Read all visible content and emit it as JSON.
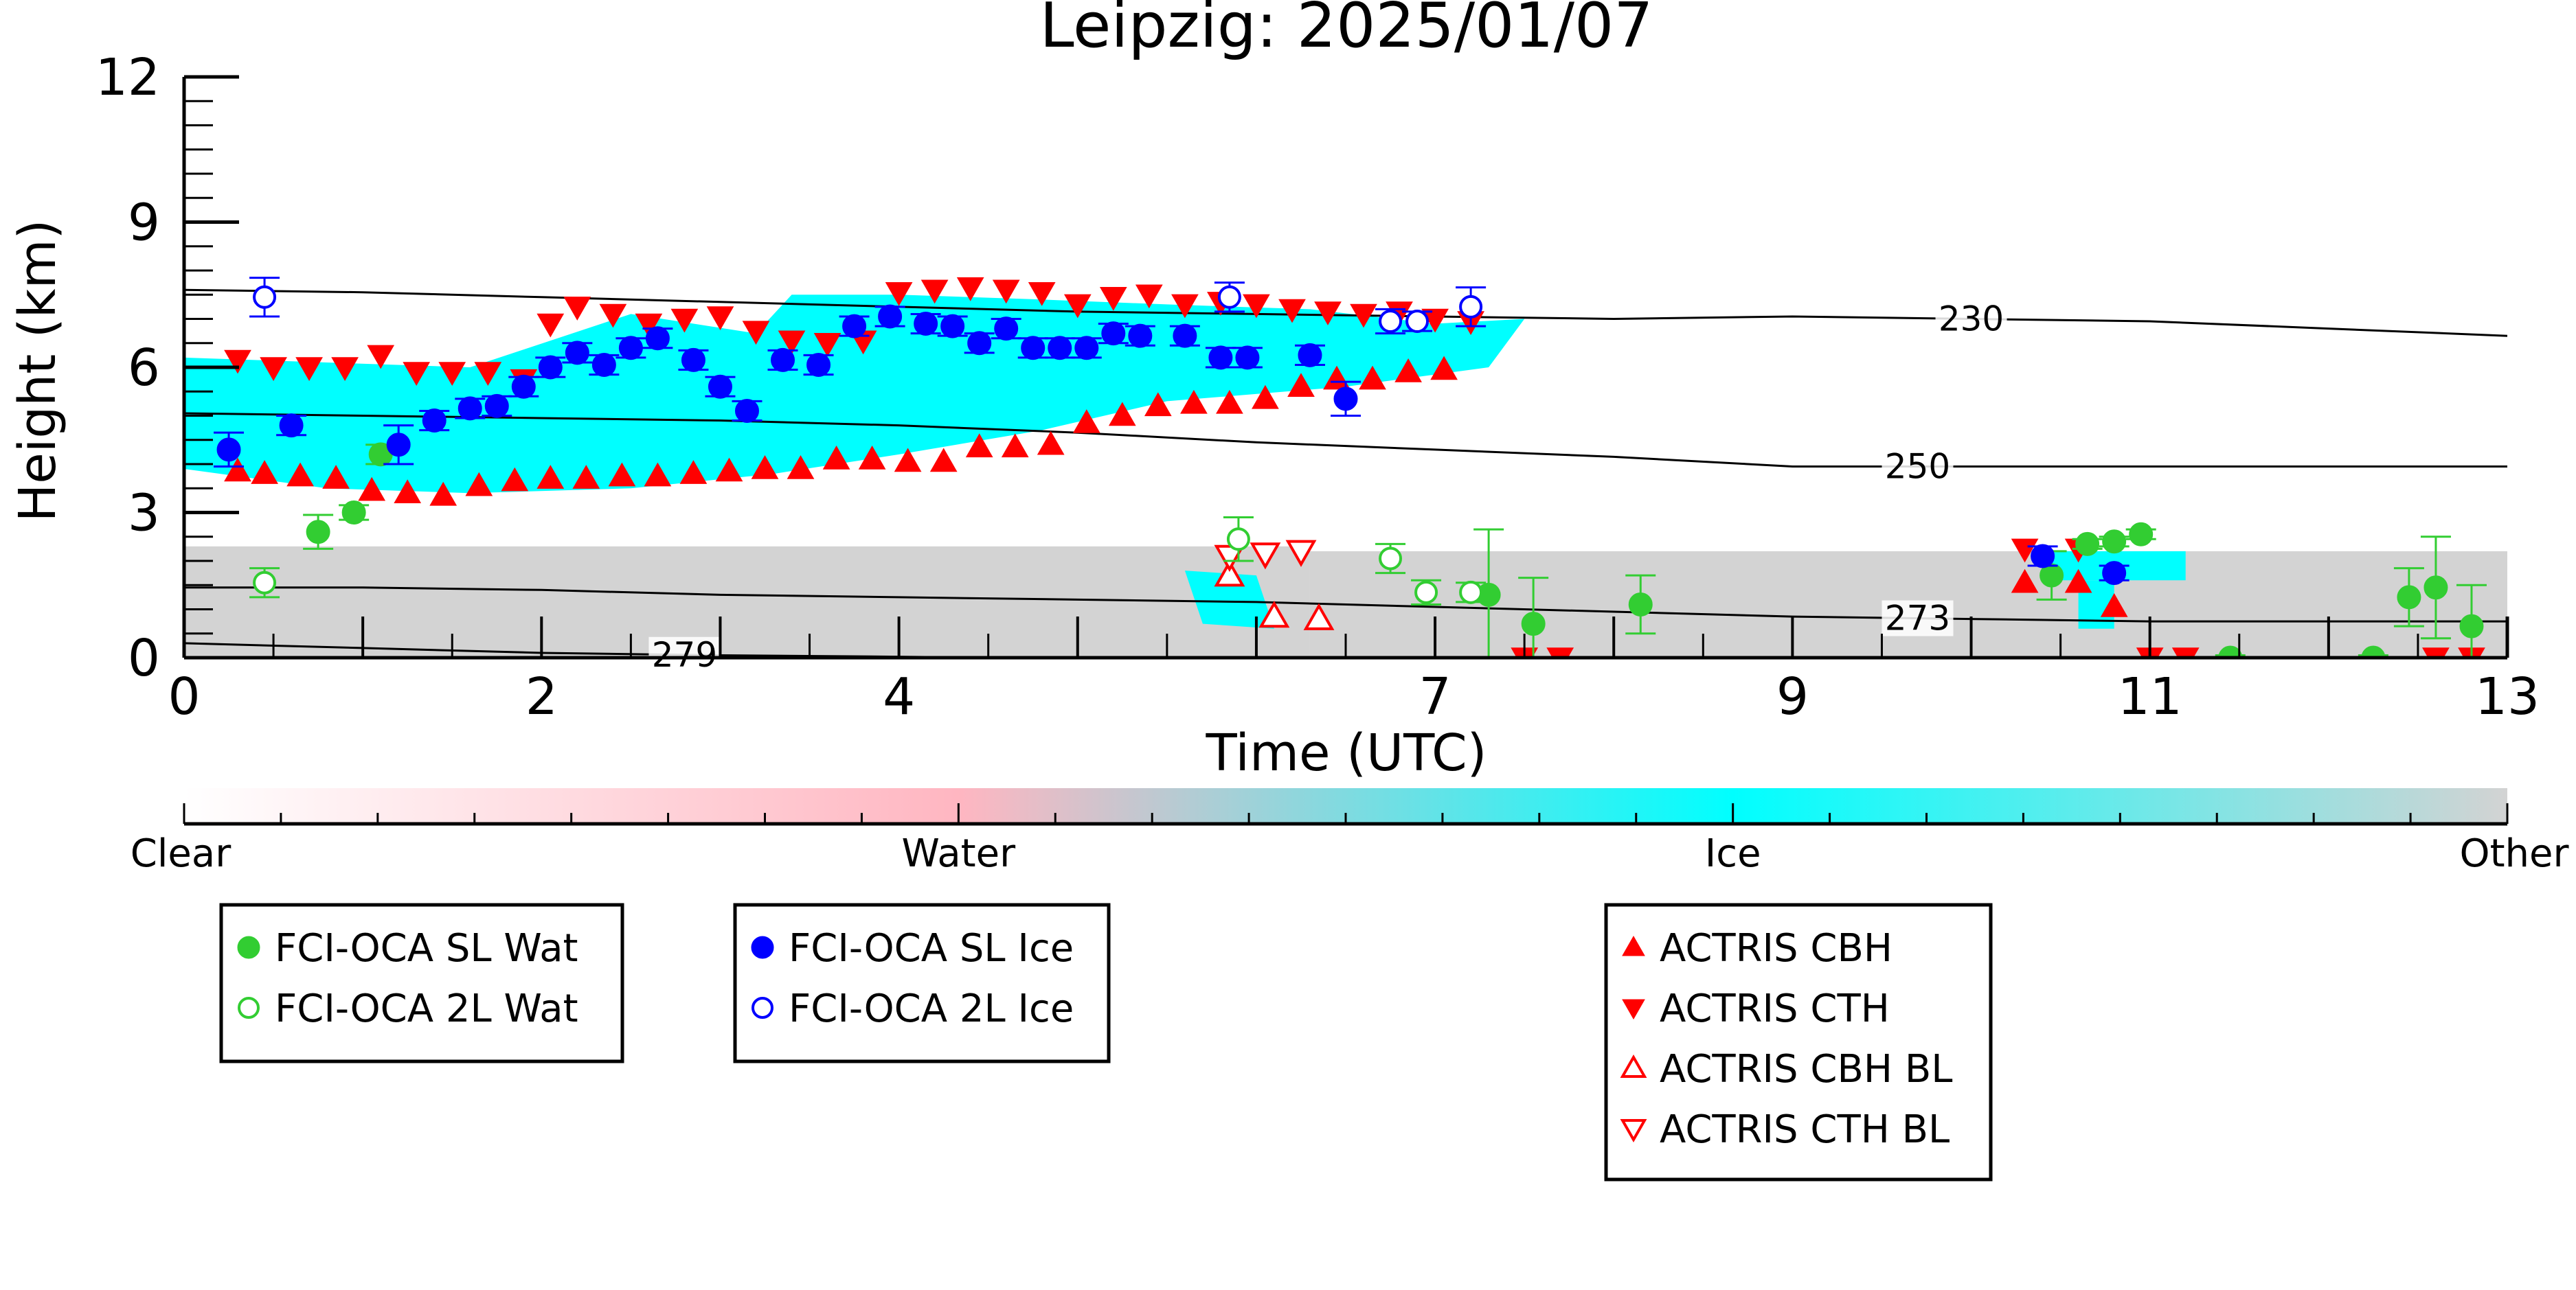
{
  "chart_data": {
    "type": "scatter",
    "title": "Leipzig: 2025/01/07",
    "xlabel": "Time (UTC)",
    "ylabel": "Height (km)",
    "xlim": [
      0,
      13
    ],
    "ylim": [
      0,
      12
    ],
    "x_ticks": [
      0,
      2,
      4,
      7,
      9,
      11,
      13
    ],
    "y_ticks": [
      0,
      3,
      6,
      9,
      12
    ],
    "colorbar": {
      "labels": [
        "Clear",
        "Water",
        "Ice",
        "Other"
      ],
      "colors": [
        "#ffffff",
        "#ffb6c1",
        "#00ffff",
        "#d3d3d3"
      ]
    },
    "classification_regions": [
      {
        "class": "Other",
        "color": "#d3d3d3",
        "x_range": [
          0.0,
          6.3
        ],
        "top_km": 2.3
      },
      {
        "class": "Other",
        "color": "#d3d3d3",
        "x_range": [
          6.3,
          13.0
        ],
        "top_km": 2.2
      },
      {
        "class": "Ice",
        "color": "#00ffff",
        "x": [
          0.0,
          0.8,
          1.6,
          2.5,
          3.2,
          3.4,
          4.0,
          4.8,
          5.5,
          6.3,
          7.0,
          7.5,
          7.3,
          6.5,
          5.5,
          4.8,
          4.0,
          3.3,
          2.5,
          1.6,
          0.8,
          0.0
        ],
        "y": [
          6.2,
          6.1,
          6.0,
          7.1,
          6.7,
          7.5,
          7.5,
          7.4,
          7.3,
          7.2,
          6.9,
          7.0,
          6.0,
          5.6,
          5.3,
          4.7,
          4.2,
          3.8,
          3.5,
          3.4,
          3.5,
          3.9
        ]
      },
      {
        "class": "Ice",
        "color": "#00ffff",
        "x": [
          5.6,
          6.0,
          6.1,
          5.7
        ],
        "y": [
          1.8,
          1.7,
          0.6,
          0.7
        ]
      },
      {
        "class": "Ice",
        "color": "#00ffff",
        "x": [
          10.4,
          11.2,
          11.2,
          10.4
        ],
        "y": [
          2.2,
          2.2,
          1.6,
          1.6
        ]
      },
      {
        "class": "Ice",
        "color": "#00ffff",
        "x": [
          10.6,
          10.8,
          10.8,
          10.6
        ],
        "y": [
          1.6,
          1.6,
          0.6,
          0.6
        ]
      }
    ],
    "temperature_contours": [
      {
        "label": "230",
        "label_x": 10.0,
        "x": [
          0,
          1,
          2,
          3,
          4,
          5,
          6,
          7,
          8,
          9,
          10,
          11,
          12,
          13
        ],
        "y": [
          7.6,
          7.55,
          7.45,
          7.35,
          7.25,
          7.15,
          7.1,
          7.05,
          7.0,
          7.05,
          7.0,
          6.95,
          6.8,
          6.65
        ]
      },
      {
        "label": "250",
        "label_x": 9.7,
        "x": [
          0,
          1,
          2,
          3,
          4,
          5,
          6,
          7,
          8,
          9,
          10,
          11,
          12,
          13
        ],
        "y": [
          5.05,
          5.0,
          4.95,
          4.9,
          4.8,
          4.65,
          4.45,
          4.3,
          4.15,
          3.95,
          3.95,
          3.95,
          3.95,
          3.95
        ]
      },
      {
        "label": "273",
        "label_x": 9.7,
        "x": [
          0,
          1,
          2,
          3,
          4,
          5,
          6,
          7,
          8,
          9,
          10,
          11,
          12,
          13
        ],
        "y": [
          1.45,
          1.45,
          1.4,
          1.3,
          1.25,
          1.2,
          1.15,
          1.05,
          0.95,
          0.85,
          0.8,
          0.75,
          0.75,
          0.75
        ]
      },
      {
        "label": "279",
        "label_x": 2.8,
        "x": [
          0,
          1,
          2,
          3,
          4,
          4.5
        ],
        "y": [
          0.3,
          0.2,
          0.1,
          0.05,
          0.02,
          0.0
        ]
      }
    ],
    "series": [
      {
        "name": "FCI-OCA SL Wat",
        "marker": "circle",
        "filled": true,
        "color": "#32cd32",
        "points": [
          [
            0.75,
            2.6,
            0.35
          ],
          [
            0.95,
            3.0,
            0.15
          ],
          [
            1.1,
            4.2,
            0.2
          ],
          [
            10.45,
            1.7,
            0.5
          ],
          [
            10.65,
            2.35,
            0.1
          ],
          [
            10.8,
            2.4,
            0.1
          ],
          [
            10.95,
            2.55,
            0.1
          ],
          [
            7.3,
            1.3,
            1.35
          ],
          [
            7.55,
            0.7,
            0.95
          ],
          [
            8.15,
            1.1,
            0.6
          ],
          [
            11.45,
            0.0,
            0.05
          ],
          [
            12.25,
            0.0,
            0.05
          ],
          [
            12.45,
            1.25,
            0.6
          ],
          [
            12.6,
            1.45,
            1.05
          ],
          [
            12.8,
            0.65,
            0.85
          ]
        ]
      },
      {
        "name": "FCI-OCA 2L Wat",
        "marker": "circle",
        "filled": false,
        "color": "#32cd32",
        "points": [
          [
            0.45,
            1.55,
            0.3
          ],
          [
            5.9,
            2.45,
            0.45
          ],
          [
            6.75,
            2.05,
            0.3
          ],
          [
            6.95,
            1.35,
            0.25
          ],
          [
            7.2,
            1.35,
            0.2
          ]
        ]
      },
      {
        "name": "FCI-OCA SL Ice",
        "marker": "circle",
        "filled": true,
        "color": "#0000ff",
        "points": [
          [
            0.25,
            4.3,
            0.35
          ],
          [
            0.6,
            4.8,
            0.2
          ],
          [
            1.2,
            4.4,
            0.4
          ],
          [
            1.4,
            4.9,
            0.2
          ],
          [
            1.6,
            5.15,
            0.2
          ],
          [
            1.75,
            5.2,
            0.2
          ],
          [
            1.9,
            5.6,
            0.2
          ],
          [
            2.05,
            6.0,
            0.2
          ],
          [
            2.2,
            6.3,
            0.2
          ],
          [
            2.35,
            6.05,
            0.2
          ],
          [
            2.5,
            6.4,
            0.2
          ],
          [
            2.65,
            6.6,
            0.2
          ],
          [
            2.85,
            6.15,
            0.2
          ],
          [
            3.0,
            5.6,
            0.2
          ],
          [
            3.15,
            5.1,
            0.2
          ],
          [
            3.35,
            6.15,
            0.2
          ],
          [
            3.55,
            6.05,
            0.2
          ],
          [
            3.75,
            6.85,
            0.2
          ],
          [
            3.95,
            7.05,
            0.2
          ],
          [
            4.15,
            6.9,
            0.2
          ],
          [
            4.3,
            6.85,
            0.2
          ],
          [
            4.45,
            6.5,
            0.2
          ],
          [
            4.6,
            6.8,
            0.2
          ],
          [
            4.75,
            6.4,
            0.2
          ],
          [
            4.9,
            6.4,
            0.2
          ],
          [
            5.05,
            6.4,
            0.2
          ],
          [
            5.2,
            6.7,
            0.2
          ],
          [
            5.35,
            6.65,
            0.2
          ],
          [
            5.6,
            6.65,
            0.2
          ],
          [
            5.8,
            6.2,
            0.2
          ],
          [
            5.95,
            6.2,
            0.2
          ],
          [
            6.3,
            6.25,
            0.2
          ],
          [
            6.5,
            5.35,
            0.35
          ],
          [
            10.4,
            2.1,
            0.2
          ],
          [
            10.8,
            1.75,
            0.15
          ]
        ]
      },
      {
        "name": "FCI-OCA 2L Ice",
        "marker": "circle",
        "filled": false,
        "color": "#0000ff",
        "points": [
          [
            0.45,
            7.45,
            0.4
          ],
          [
            5.85,
            7.45,
            0.3
          ],
          [
            6.75,
            6.95,
            0.25
          ],
          [
            6.9,
            6.95,
            0.2
          ],
          [
            7.2,
            7.25,
            0.4
          ]
        ]
      },
      {
        "name": "ACTRIS CBH",
        "marker": "triangle-up",
        "filled": true,
        "color": "#ff0000",
        "points": [
          [
            0.3,
            3.85
          ],
          [
            0.45,
            3.8
          ],
          [
            0.65,
            3.75
          ],
          [
            0.85,
            3.7
          ],
          [
            1.05,
            3.45
          ],
          [
            1.25,
            3.4
          ],
          [
            1.45,
            3.35
          ],
          [
            1.65,
            3.55
          ],
          [
            1.85,
            3.65
          ],
          [
            2.05,
            3.7
          ],
          [
            2.25,
            3.7
          ],
          [
            2.45,
            3.75
          ],
          [
            2.65,
            3.75
          ],
          [
            2.85,
            3.8
          ],
          [
            3.05,
            3.85
          ],
          [
            3.25,
            3.9
          ],
          [
            3.45,
            3.9
          ],
          [
            3.65,
            4.1
          ],
          [
            3.85,
            4.1
          ],
          [
            4.05,
            4.05
          ],
          [
            4.25,
            4.05
          ],
          [
            4.45,
            4.35
          ],
          [
            4.65,
            4.35
          ],
          [
            4.85,
            4.4
          ],
          [
            5.05,
            4.85
          ],
          [
            5.25,
            5.0
          ],
          [
            5.45,
            5.2
          ],
          [
            5.65,
            5.25
          ],
          [
            5.85,
            5.25
          ],
          [
            6.05,
            5.35
          ],
          [
            6.25,
            5.6
          ],
          [
            6.45,
            5.75
          ],
          [
            6.65,
            5.75
          ],
          [
            6.85,
            5.9
          ],
          [
            7.05,
            5.95
          ],
          [
            10.3,
            1.55
          ],
          [
            10.6,
            1.55
          ],
          [
            10.8,
            1.05
          ]
        ]
      },
      {
        "name": "ACTRIS CTH",
        "marker": "triangle-down",
        "filled": true,
        "color": "#ff0000",
        "points": [
          [
            0.3,
            6.15
          ],
          [
            0.5,
            6.0
          ],
          [
            0.7,
            6.0
          ],
          [
            0.9,
            6.0
          ],
          [
            1.1,
            6.25
          ],
          [
            1.3,
            5.9
          ],
          [
            1.5,
            5.9
          ],
          [
            1.7,
            5.9
          ],
          [
            1.9,
            5.75
          ],
          [
            2.05,
            6.9
          ],
          [
            2.2,
            7.25
          ],
          [
            2.4,
            7.1
          ],
          [
            2.6,
            6.9
          ],
          [
            2.8,
            7.0
          ],
          [
            3.0,
            7.05
          ],
          [
            3.2,
            6.75
          ],
          [
            3.4,
            6.55
          ],
          [
            3.6,
            6.5
          ],
          [
            3.8,
            6.55
          ],
          [
            4.0,
            7.55
          ],
          [
            4.2,
            7.6
          ],
          [
            4.4,
            7.65
          ],
          [
            4.6,
            7.6
          ],
          [
            4.8,
            7.55
          ],
          [
            5.0,
            7.3
          ],
          [
            5.2,
            7.45
          ],
          [
            5.4,
            7.5
          ],
          [
            5.6,
            7.3
          ],
          [
            5.8,
            7.35
          ],
          [
            6.0,
            7.3
          ],
          [
            6.2,
            7.2
          ],
          [
            6.4,
            7.15
          ],
          [
            6.6,
            7.1
          ],
          [
            6.8,
            7.15
          ],
          [
            7.0,
            7.0
          ],
          [
            7.2,
            6.95
          ],
          [
            7.5,
            0.0
          ],
          [
            7.7,
            0.0
          ],
          [
            10.3,
            2.25
          ],
          [
            10.6,
            2.25
          ],
          [
            11.0,
            0.0
          ],
          [
            11.2,
            0.0
          ],
          [
            12.6,
            0.0
          ],
          [
            12.8,
            0.0
          ]
        ]
      },
      {
        "name": "ACTRIS CBH BL",
        "marker": "triangle-up",
        "filled": false,
        "color": "#ff0000",
        "points": [
          [
            5.85,
            1.7
          ],
          [
            6.1,
            0.85
          ],
          [
            6.35,
            0.8
          ]
        ]
      },
      {
        "name": "ACTRIS CTH BL",
        "marker": "triangle-down",
        "filled": false,
        "color": "#ff0000",
        "points": [
          [
            5.85,
            2.1
          ],
          [
            6.05,
            2.15
          ],
          [
            6.25,
            2.2
          ]
        ]
      }
    ],
    "legends": [
      {
        "entries": [
          "FCI-OCA SL Wat",
          "FCI-OCA 2L Wat"
        ]
      },
      {
        "entries": [
          "FCI-OCA SL Ice",
          "FCI-OCA 2L Ice"
        ]
      },
      {
        "entries": [
          "ACTRIS CBH",
          "ACTRIS CTH",
          "ACTRIS CBH BL",
          "ACTRIS CTH BL"
        ]
      }
    ]
  }
}
